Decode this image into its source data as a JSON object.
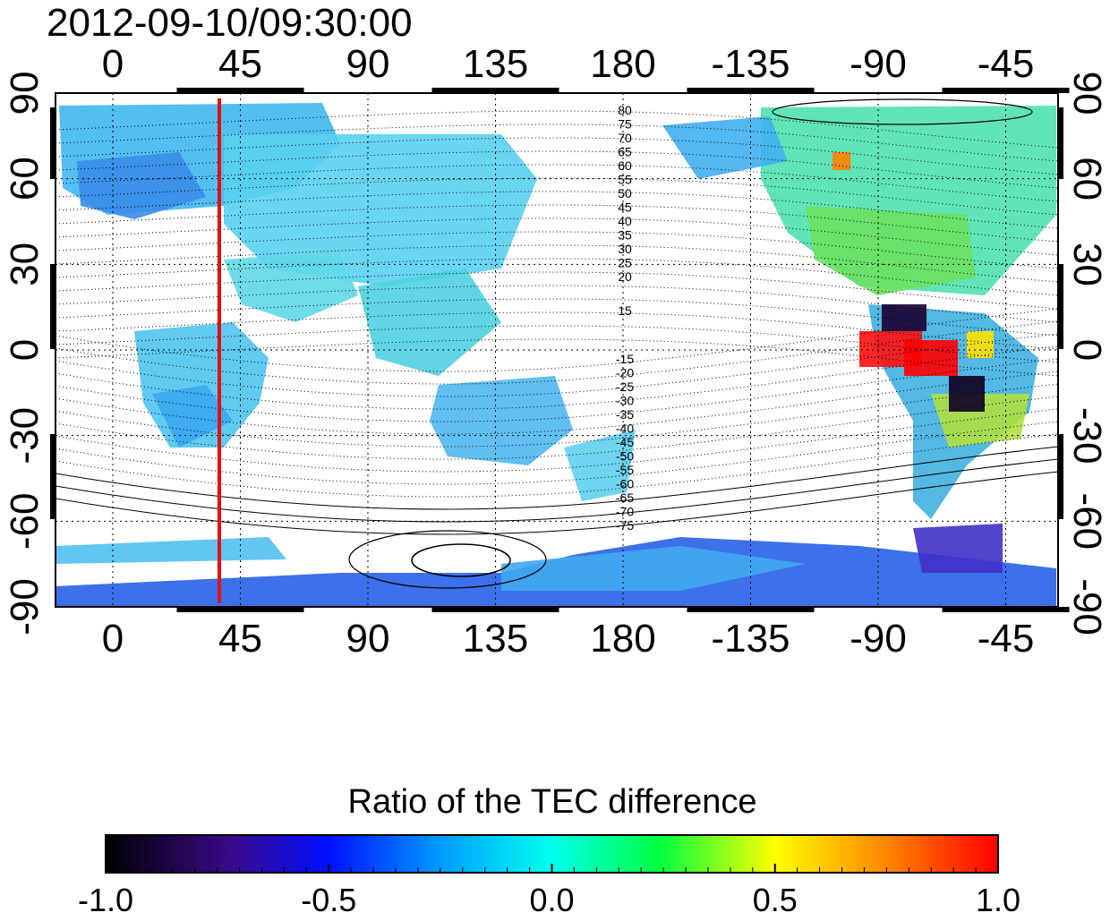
{
  "header": {
    "timestamp": "2012-09-10/09:30:00"
  },
  "map": {
    "longitude_ticks": [
      "0",
      "45",
      "90",
      "135",
      "180",
      "-135",
      "-90",
      "-45"
    ],
    "latitude_ticks": [
      "90",
      "60",
      "30",
      "0",
      "-30",
      "-60",
      "-90"
    ],
    "contour_labels_north": [
      "80",
      "75",
      "70",
      "65",
      "60",
      "55",
      "50",
      "45",
      "40",
      "35",
      "30",
      "25",
      "20",
      "15"
    ],
    "contour_labels_south": [
      "-15",
      "-20",
      "-25",
      "-30",
      "-35",
      "-40",
      "-45",
      "-50",
      "-55",
      "-60",
      "-65",
      "-70",
      "-75"
    ],
    "marker_longitude": 40,
    "marker_color": "#e01010"
  },
  "colorbar": {
    "title": "Ratio of the TEC difference",
    "min": -1.0,
    "max": 1.0,
    "tick_labels": [
      "-1.0",
      "-0.5",
      "0.0",
      "0.5",
      "1.0"
    ]
  },
  "colors": {
    "ocean": "#ffffff",
    "land_default": "#40c8f0",
    "frame": "#000000"
  }
}
